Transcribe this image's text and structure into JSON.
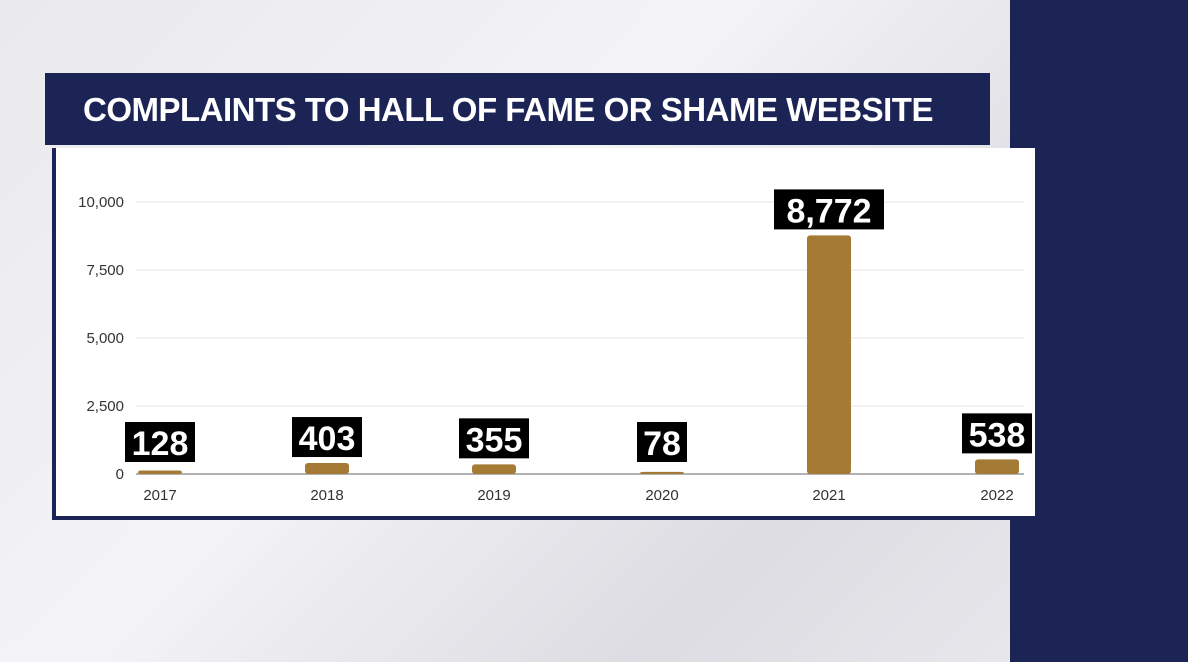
{
  "chart_data": {
    "type": "bar",
    "title": "COMPLAINTS TO HALL OF FAME OR SHAME WEBSITE",
    "categories": [
      "2017",
      "2018",
      "2019",
      "2020",
      "2021",
      "2022"
    ],
    "values": [
      128,
      403,
      355,
      78,
      8772,
      538
    ],
    "data_labels": [
      "128",
      "403",
      "355",
      "78",
      "8,772",
      "538"
    ],
    "yticks": [
      0,
      2500,
      5000,
      7500,
      10000
    ],
    "ytick_labels": [
      "0",
      "2,500",
      "5,000",
      "7,500",
      "10,000"
    ],
    "ylim": [
      0,
      10000
    ],
    "grid": true,
    "colors": {
      "bar": "#a47a35",
      "label_bg": "#000000",
      "title_bg": "#1b2454"
    }
  }
}
